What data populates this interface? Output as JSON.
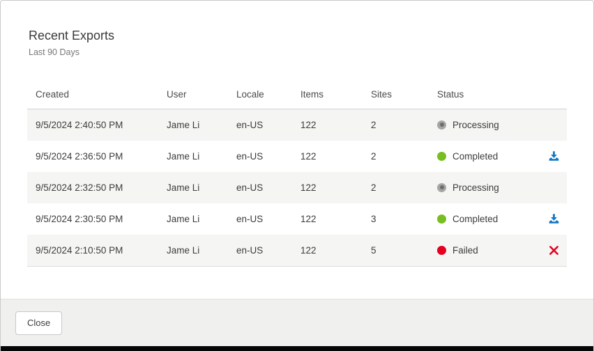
{
  "dialog": {
    "title": "Recent Exports",
    "subtitle": "Last 90 Days"
  },
  "table": {
    "columns": [
      "Created",
      "User",
      "Locale",
      "Items",
      "Sites",
      "Status"
    ],
    "rows": [
      {
        "created": "9/5/2024 2:40:50 PM",
        "user": "Jame Li",
        "locale": "en-US",
        "items": "122",
        "sites": "2",
        "status": "Processing",
        "action": "none"
      },
      {
        "created": "9/5/2024 2:36:50 PM",
        "user": "Jame Li",
        "locale": "en-US",
        "items": "122",
        "sites": "2",
        "status": "Completed",
        "action": "download"
      },
      {
        "created": "9/5/2024 2:32:50 PM",
        "user": "Jame Li",
        "locale": "en-US",
        "items": "122",
        "sites": "2",
        "status": "Processing",
        "action": "none"
      },
      {
        "created": "9/5/2024 2:30:50 PM",
        "user": "Jame Li",
        "locale": "en-US",
        "items": "122",
        "sites": "3",
        "status": "Completed",
        "action": "download"
      },
      {
        "created": "9/5/2024 2:10:50 PM",
        "user": "Jame Li",
        "locale": "en-US",
        "items": "122",
        "sites": "5",
        "status": "Failed",
        "action": "remove"
      }
    ]
  },
  "icons": {
    "download": "download-icon",
    "remove": "x-icon"
  },
  "footer": {
    "close_label": "Close"
  },
  "colors": {
    "status_processing": "#a6a6a6",
    "status_processing_inner": "#6d6d6d",
    "status_completed": "#79be20",
    "status_failed": "#e6001f",
    "download_icon_blue": "#1377c2",
    "remove_icon_red": "#e6001f",
    "stripe_bg": "#f5f5f4",
    "footer_bg": "#f0f0ee",
    "bottom_bar": "#060606"
  }
}
